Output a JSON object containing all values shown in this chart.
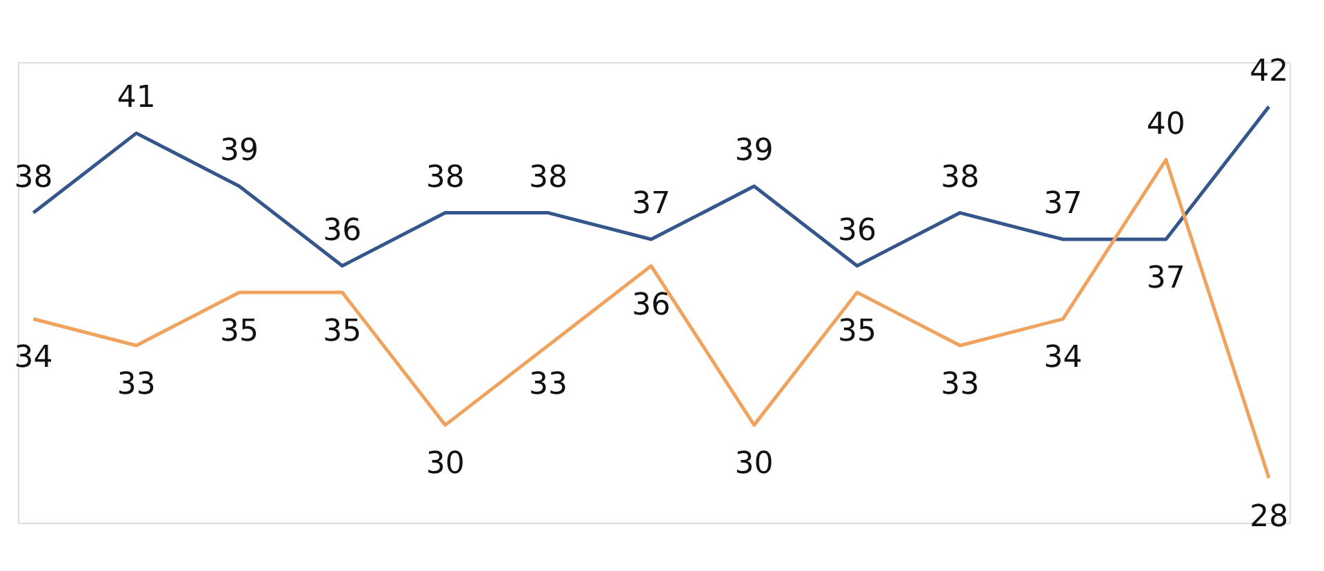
{
  "chart_data": {
    "type": "line",
    "categories": [
      null,
      null,
      null,
      null,
      null,
      null,
      null,
      null,
      null,
      null,
      null,
      null,
      null
    ],
    "series": [
      {
        "color": "#34568b",
        "values": [
          38,
          41,
          39,
          36,
          38,
          38,
          37,
          39,
          36,
          38,
          37,
          37,
          42
        ]
      },
      {
        "color": "#f0a35e",
        "values": [
          34,
          33,
          35,
          35,
          30,
          33,
          36,
          30,
          35,
          33,
          34,
          40,
          28
        ]
      }
    ],
    "data_labels": true,
    "grid": false,
    "legend": false,
    "tick_labels": false,
    "marker": "none",
    "line_style": "solid"
  }
}
